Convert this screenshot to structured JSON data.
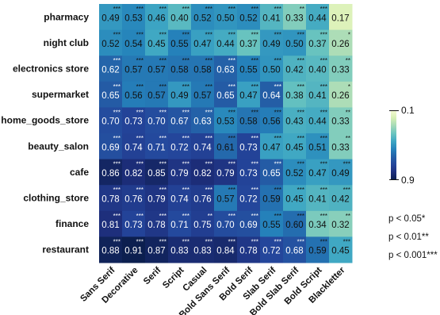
{
  "chart_data": {
    "type": "heatmap",
    "title": "",
    "xlabel": "",
    "ylabel": "",
    "rows": [
      "pharmacy",
      "night club",
      "electronics store",
      "supermarket",
      "home_goods_store",
      "beauty_salon",
      "cafe",
      "clothing_store",
      "finance",
      "restaurant"
    ],
    "columns": [
      "Sans Serif",
      "Decorative",
      "Serif",
      "Script",
      "Casual",
      "Bold Sans Serif",
      "Bold Serif",
      "Slab Serif",
      "Bold Slab Serif",
      "Bold Script",
      "Blackletter"
    ],
    "values": [
      [
        0.49,
        0.53,
        0.46,
        0.4,
        0.52,
        0.5,
        0.52,
        0.41,
        0.33,
        0.44,
        0.17
      ],
      [
        0.52,
        0.54,
        0.45,
        0.55,
        0.47,
        0.44,
        0.37,
        0.49,
        0.5,
        0.37,
        0.26
      ],
      [
        0.62,
        0.57,
        0.57,
        0.58,
        0.58,
        0.63,
        0.55,
        0.5,
        0.42,
        0.4,
        0.33
      ],
      [
        0.65,
        0.56,
        0.57,
        0.49,
        0.57,
        0.65,
        0.47,
        0.64,
        0.38,
        0.41,
        0.26
      ],
      [
        0.7,
        0.73,
        0.7,
        0.67,
        0.63,
        0.53,
        0.58,
        0.56,
        0.43,
        0.44,
        0.33
      ],
      [
        0.69,
        0.74,
        0.71,
        0.72,
        0.74,
        0.61,
        0.73,
        0.47,
        0.45,
        0.51,
        0.33
      ],
      [
        0.86,
        0.82,
        0.85,
        0.79,
        0.82,
        0.79,
        0.73,
        0.65,
        0.52,
        0.47,
        0.49
      ],
      [
        0.78,
        0.76,
        0.79,
        0.74,
        0.76,
        0.57,
        0.72,
        0.59,
        0.45,
        0.41,
        0.42
      ],
      [
        0.81,
        0.73,
        0.78,
        0.71,
        0.75,
        0.7,
        0.69,
        0.55,
        0.6,
        0.34,
        0.32
      ],
      [
        0.88,
        0.91,
        0.87,
        0.83,
        0.83,
        0.84,
        0.78,
        0.72,
        0.68,
        0.59,
        0.45
      ]
    ],
    "significance": [
      [
        "***",
        "***",
        "***",
        "***",
        "***",
        "***",
        "***",
        "***",
        "**",
        "***",
        ""
      ],
      [
        "***",
        "***",
        "***",
        "***",
        "***",
        "***",
        "***",
        "***",
        "***",
        "***",
        "*"
      ],
      [
        "***",
        "***",
        "***",
        "***",
        "***",
        "***",
        "***",
        "***",
        "***",
        "***",
        "**"
      ],
      [
        "***",
        "***",
        "***",
        "***",
        "***",
        "***",
        "***",
        "***",
        "***",
        "***",
        "*"
      ],
      [
        "***",
        "***",
        "***",
        "***",
        "***",
        "***",
        "***",
        "***",
        "***",
        "***",
        "**"
      ],
      [
        "***",
        "***",
        "***",
        "***",
        "***",
        "***",
        "***",
        "***",
        "***",
        "***",
        "**"
      ],
      [
        "***",
        "***",
        "***",
        "***",
        "***",
        "***",
        "***",
        "***",
        "***",
        "***",
        "***"
      ],
      [
        "***",
        "***",
        "***",
        "***",
        "***",
        "***",
        "***",
        "***",
        "***",
        "***",
        "***"
      ],
      [
        "***",
        "***",
        "***",
        "***",
        "**",
        "***",
        "***",
        "***",
        "***",
        "***",
        "**"
      ],
      [
        "***",
        "***",
        "***",
        "***",
        "***",
        "***",
        "***",
        "***",
        "***",
        "***",
        "***"
      ]
    ],
    "colorbar": {
      "range": [
        0.1,
        0.9
      ],
      "ticks": [
        "0.1",
        "0.9"
      ],
      "colors": [
        "#f7fcd5",
        "#d6efb3",
        "#a3d9b8",
        "#6ac4bf",
        "#3da6c3",
        "#2583bb",
        "#2460a7",
        "#24459b",
        "#1e2f7c",
        "#0c1f4f"
      ]
    },
    "significance_legend": [
      "p < 0.05*",
      "p < 0.01**",
      "p < 0.001***"
    ]
  }
}
